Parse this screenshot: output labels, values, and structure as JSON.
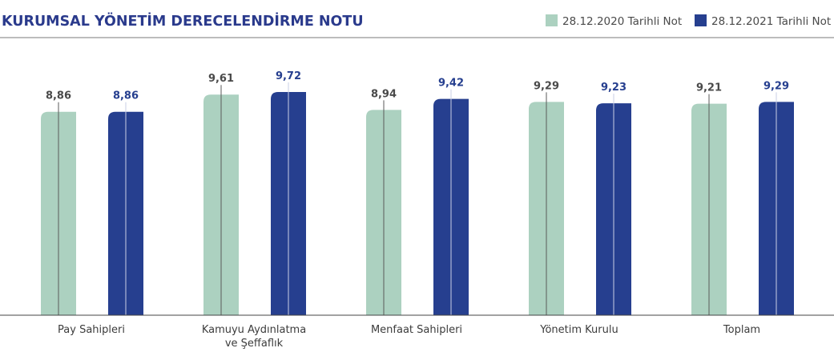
{
  "chart_data": {
    "type": "bar",
    "title": "KURUMSAL YÖNETİM DERECELENDİRME NOTU",
    "categories": [
      [
        "Pay Sahipleri"
      ],
      [
        "Kamuyu Aydınlatma",
        "ve Şeffaflık"
      ],
      [
        "Menfaat Sahipleri"
      ],
      [
        "Yönetim Kurulu"
      ],
      [
        "Toplam"
      ]
    ],
    "series": [
      {
        "name": "28.12.2020 Tarihli Not",
        "color": "#acd1c0",
        "label_color": "#4a4a4a",
        "values": [
          8.86,
          9.61,
          8.94,
          9.29,
          9.21
        ],
        "value_labels": [
          "8,86",
          "9,61",
          "8,94",
          "9,29",
          "9,21"
        ]
      },
      {
        "name": "28.12.2021 Tarihli Not",
        "color": "#263f8f",
        "label_color": "#263f8f",
        "values": [
          8.86,
          9.72,
          9.42,
          9.23,
          9.29
        ],
        "value_labels": [
          "8,86",
          "9,72",
          "9,42",
          "9,23",
          "9,29"
        ]
      }
    ],
    "ylim": [
      0,
      10
    ],
    "xlabel": "",
    "ylabel": "",
    "grid": false,
    "legend": "top-right"
  }
}
